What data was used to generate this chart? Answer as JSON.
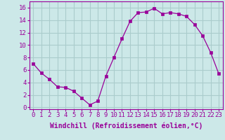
{
  "x": [
    0,
    1,
    2,
    3,
    4,
    5,
    6,
    7,
    8,
    9,
    10,
    11,
    12,
    13,
    14,
    15,
    16,
    17,
    18,
    19,
    20,
    21,
    22,
    23
  ],
  "y": [
    7,
    5.5,
    4.5,
    3.3,
    3.2,
    2.6,
    1.5,
    0.4,
    1.0,
    5.0,
    8.0,
    11.0,
    13.8,
    15.2,
    15.3,
    15.9,
    15.0,
    15.2,
    15.0,
    14.6,
    13.3,
    11.5,
    8.8,
    5.4
  ],
  "line_color": "#990099",
  "marker": "s",
  "marker_size": 2.5,
  "bg_color": "#cce8e8",
  "grid_color": "#aacccc",
  "xlabel": "Windchill (Refroidissement éolien,°C)",
  "xlabel_fontsize": 7,
  "xtick_labels": [
    "0",
    "1",
    "2",
    "3",
    "4",
    "5",
    "6",
    "7",
    "8",
    "9",
    "10",
    "11",
    "12",
    "13",
    "14",
    "15",
    "16",
    "17",
    "18",
    "19",
    "20",
    "21",
    "22",
    "23"
  ],
  "ytick_labels": [
    "0",
    "2",
    "4",
    "6",
    "8",
    "10",
    "12",
    "14",
    "16"
  ],
  "ylim": [
    -0.3,
    17.0
  ],
  "xlim": [
    -0.5,
    23.5
  ],
  "tick_fontsize": 6.5,
  "title": ""
}
